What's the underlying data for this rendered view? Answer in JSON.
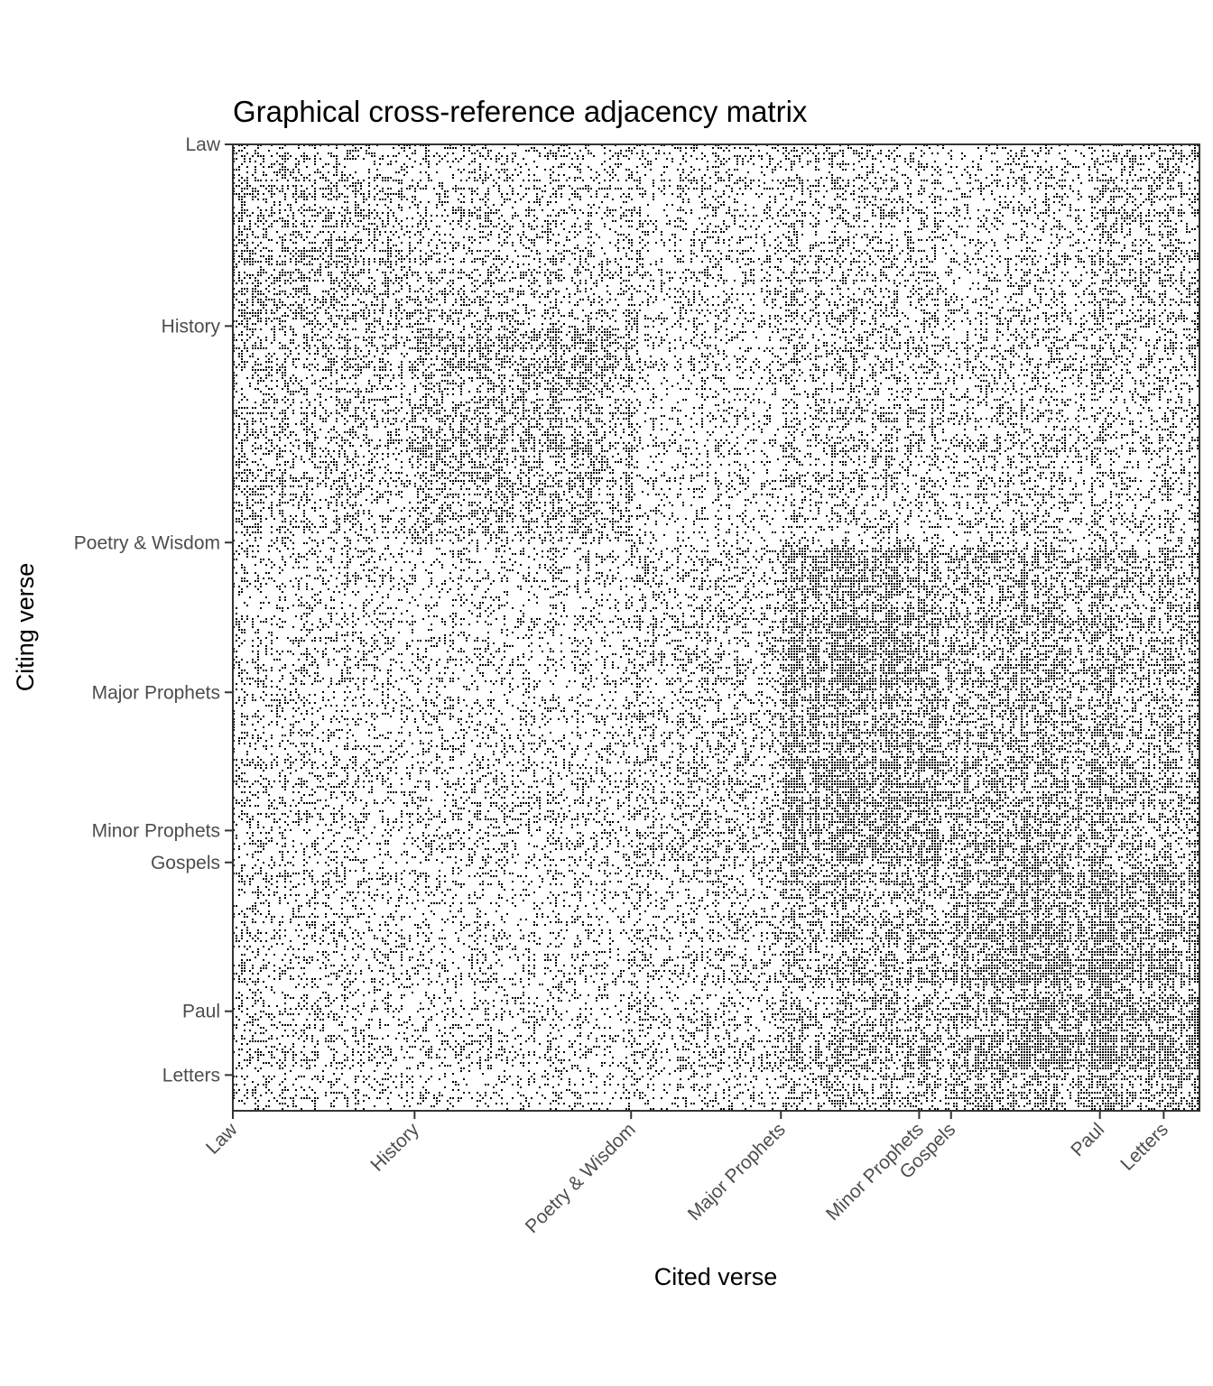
{
  "chart_data": {
    "type": "heatmap",
    "title": "Graphical cross-reference adjacency matrix",
    "xlabel": "Cited verse",
    "ylabel": "Citing verse",
    "grid": false,
    "x_tick_labels": [
      "Law",
      "History",
      "Poetry & Wisdom",
      "Major Prophets",
      "Minor Prophets",
      "Gospels",
      "Paul",
      "Letters"
    ],
    "y_tick_labels": [
      "Law",
      "History",
      "Poetry & Wisdom",
      "Major Prophets",
      "Minor Prophets",
      "Gospels",
      "Paul",
      "Letters"
    ],
    "section_starts": [
      0,
      0.188,
      0.412,
      0.567,
      0.71,
      0.743,
      0.897,
      0.963
    ],
    "matrix_description_colors": {
      "link": "#000000",
      "background": "#ffffff",
      "frame": "#333333"
    },
    "approx_block_density": [
      [
        0.6,
        0.45,
        0.4,
        0.45,
        0.45,
        0.4,
        0.55,
        0.55
      ],
      [
        0.5,
        0.65,
        0.3,
        0.45,
        0.45,
        0.45,
        0.4,
        0.45
      ],
      [
        0.35,
        0.3,
        0.45,
        0.85,
        0.7,
        0.7,
        0.6,
        0.6
      ],
      [
        0.35,
        0.35,
        0.45,
        0.85,
        0.8,
        0.7,
        0.6,
        0.6
      ],
      [
        0.3,
        0.35,
        0.5,
        0.8,
        0.85,
        0.7,
        0.55,
        0.55
      ],
      [
        0.35,
        0.3,
        0.4,
        0.6,
        0.6,
        0.9,
        0.85,
        0.85
      ],
      [
        0.35,
        0.3,
        0.4,
        0.6,
        0.6,
        0.85,
        0.9,
        0.85
      ],
      [
        0.4,
        0.3,
        0.4,
        0.65,
        0.65,
        0.85,
        0.9,
        0.85
      ]
    ]
  }
}
